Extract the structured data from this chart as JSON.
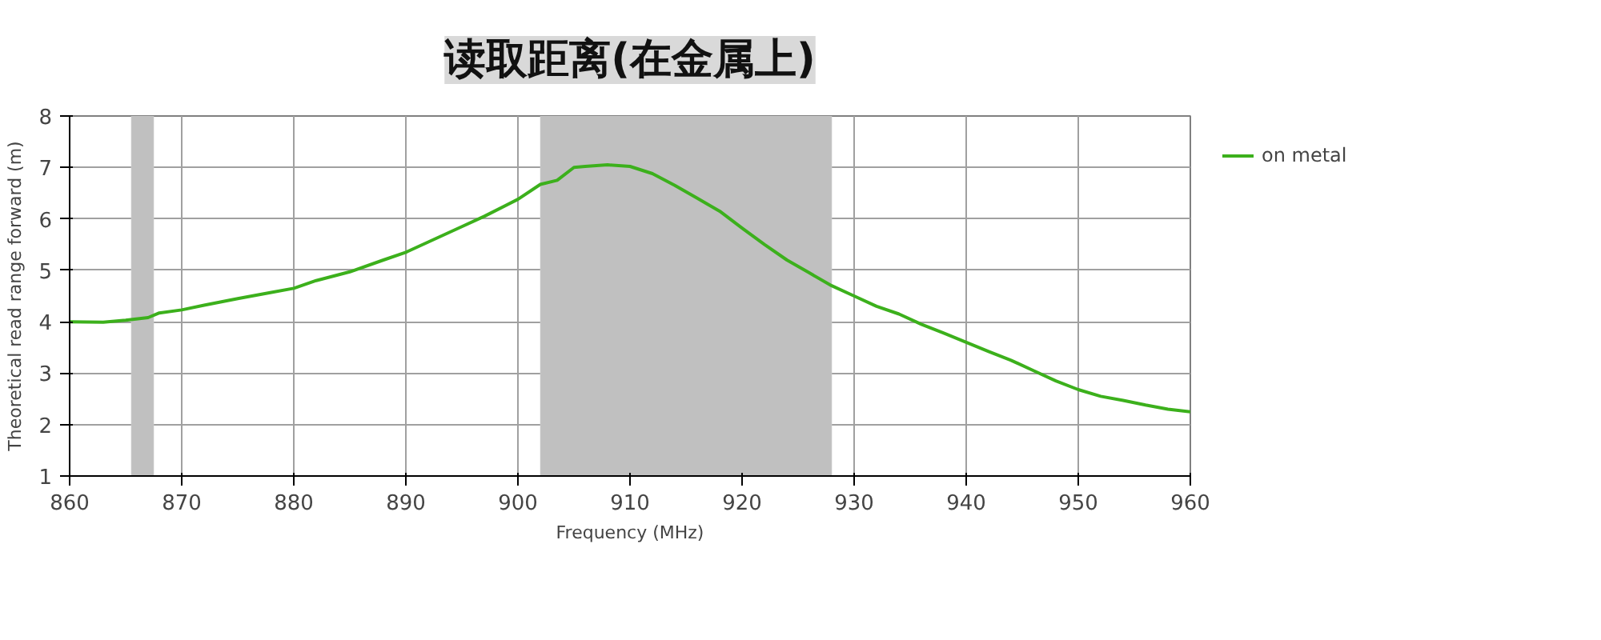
{
  "chart_data": {
    "type": "line",
    "title": "读取距离(在金属上)",
    "xlabel": "Frequency (MHz)",
    "ylabel": "Theoretical read range forward (m)",
    "xlim": [
      860,
      960
    ],
    "xticks": [
      860,
      870,
      880,
      890,
      900,
      910,
      920,
      930,
      940,
      950,
      960
    ],
    "ylim": [
      1,
      8
    ],
    "yticks": [
      1,
      2,
      3,
      4,
      5,
      6,
      7,
      8
    ],
    "grid": true,
    "legend": "top right",
    "bands": [
      {
        "axis": "x",
        "from": 865.5,
        "to": 867.5,
        "color": "#c0c0c0"
      },
      {
        "axis": "x",
        "from": 902,
        "to": 928,
        "color": "#c0c0c0"
      }
    ],
    "series": [
      {
        "name": "on metal",
        "color": "#3cb01c",
        "x": [
          860,
          863,
          865,
          867,
          868,
          870,
          872,
          875,
          878,
          880,
          882,
          885,
          888,
          890,
          892,
          895,
          897,
          900,
          902,
          903.5,
          905,
          906,
          908,
          910,
          912,
          914,
          916,
          918,
          920,
          922,
          924,
          926,
          928,
          930,
          932,
          934,
          936,
          938,
          940,
          942,
          944,
          946,
          948,
          950,
          952,
          954,
          956,
          958,
          960
        ],
        "values": [
          4.0,
          3.99,
          4.03,
          4.08,
          4.17,
          4.23,
          4.32,
          4.45,
          4.57,
          4.65,
          4.8,
          4.97,
          5.2,
          5.35,
          5.55,
          5.85,
          6.05,
          6.38,
          6.67,
          6.75,
          7.0,
          7.02,
          7.05,
          7.02,
          6.88,
          6.65,
          6.4,
          6.15,
          5.82,
          5.5,
          5.2,
          4.95,
          4.7,
          4.5,
          4.3,
          4.15,
          3.95,
          3.78,
          3.6,
          3.42,
          3.25,
          3.05,
          2.85,
          2.68,
          2.55,
          2.47,
          2.38,
          2.3,
          2.25
        ]
      }
    ]
  }
}
